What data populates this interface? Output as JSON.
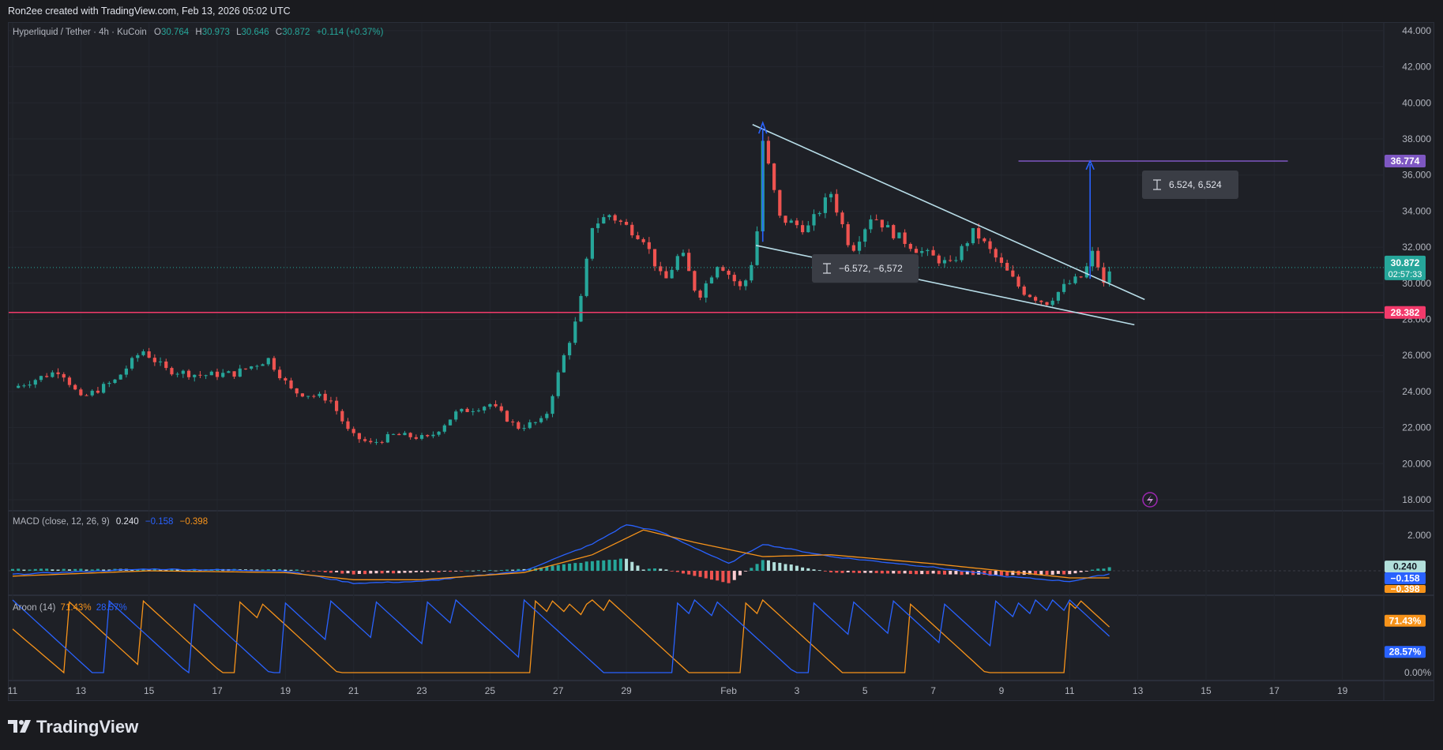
{
  "header": {
    "credit": "Ron2ee created with TradingView.com, Feb 13, 2026 05:02 UTC"
  },
  "legend": {
    "symbol": "Hyperliquid / Tether · 4h · KuCoin",
    "o_label": "O",
    "o_value": "30.764",
    "h_label": "H",
    "h_value": "30.973",
    "l_label": "L",
    "l_value": "30.646",
    "c_label": "C",
    "c_value": "30.872",
    "change": "+0.114 (+0.37%)"
  },
  "macd": {
    "label": "MACD (close, 12, 26, 9)",
    "hist": "0.240",
    "macd": "−0.158",
    "signal": "−0.398"
  },
  "aroon": {
    "label": "Aroon (14)",
    "up": "71.43%",
    "down": "28.57%"
  },
  "price_tags": {
    "target": "36.774",
    "last": "30.872",
    "countdown": "02:57:33",
    "support": "28.382"
  },
  "macd_tags": {
    "hist": "0.240",
    "macd": "−0.158",
    "signal": "−0.398"
  },
  "aroon_tags": {
    "up": "71.43%",
    "down": "28.57%"
  },
  "measure_labels": {
    "down": "−6.572, −6,572",
    "up": "6.524, 6,524"
  },
  "footer": {
    "brand": "TradingView"
  },
  "colors": {
    "up": "#26a69a",
    "down": "#ef5350",
    "support": "#f23a6b",
    "target": "#7e57c2",
    "macd": "#2962ff",
    "signal": "#f7931a",
    "aroon_up": "#f7931a",
    "aroon_down": "#2962ff"
  },
  "chart_data": [
    {
      "type": "candlestick",
      "title": "Hyperliquid / Tether · 4h · KuCoin",
      "price_axis_ticks": [
        "44.000",
        "42.000",
        "40.000",
        "38.000",
        "36.000",
        "34.000",
        "32.000",
        "30.000",
        "28.000",
        "26.000",
        "24.000",
        "22.000",
        "20.000",
        "18.000"
      ],
      "ylim": [
        17.0,
        44.5
      ],
      "time_axis_ticks": [
        "11",
        "13",
        "15",
        "17",
        "19",
        "21",
        "23",
        "25",
        "27",
        "29",
        "Feb",
        "3",
        "5",
        "7",
        "9",
        "11",
        "13",
        "15",
        "17",
        "19"
      ],
      "horizontal_lines": [
        {
          "price": 28.382
        },
        {
          "price": 36.774
        }
      ],
      "trendlines": [
        {
          "from": {
            "day": "Feb 3",
            "price": 38.8
          },
          "to": {
            "day": "Feb 14",
            "price": 29.1
          }
        },
        {
          "from": {
            "day": "Feb 3",
            "price": 32.1
          },
          "to": {
            "day": "Feb 14",
            "price": 27.7
          }
        }
      ],
      "measures": [
        {
          "from_price": 32.3,
          "to_price": 38.9,
          "label": "−6.572, −6,572"
        },
        {
          "from_price": 30.25,
          "to_price": 36.774,
          "label": "6.524, 6,524"
        }
      ],
      "anchors": [
        {
          "day": 11,
          "price": 24.2
        },
        {
          "day": 12.4,
          "price": 25.2
        },
        {
          "day": 13.0,
          "price": 23.6
        },
        {
          "day": 14.0,
          "price": 24.6
        },
        {
          "day": 14.8,
          "price": 26.3
        },
        {
          "day": 15.5,
          "price": 25.2
        },
        {
          "day": 16.5,
          "price": 24.9
        },
        {
          "day": 17.5,
          "price": 25.0
        },
        {
          "day": 18.5,
          "price": 25.8
        },
        {
          "day": 19.2,
          "price": 24.0
        },
        {
          "day": 20.3,
          "price": 23.6
        },
        {
          "day": 20.9,
          "price": 21.6
        },
        {
          "day": 21.5,
          "price": 21.1
        },
        {
          "day": 22.2,
          "price": 21.6
        },
        {
          "day": 23.2,
          "price": 21.4
        },
        {
          "day": 24.0,
          "price": 22.8
        },
        {
          "day": 25.0,
          "price": 23.3
        },
        {
          "day": 25.8,
          "price": 22.0
        },
        {
          "day": 26.6,
          "price": 22.4
        },
        {
          "day": 27.1,
          "price": 25.6
        },
        {
          "day": 27.6,
          "price": 28.3
        },
        {
          "day": 28.0,
          "price": 33.2
        },
        {
          "day": 28.5,
          "price": 33.8
        },
        {
          "day": 29.5,
          "price": 32.5
        },
        {
          "day": 30.1,
          "price": 30.0
        },
        {
          "day": 30.6,
          "price": 31.8
        },
        {
          "day": 31.1,
          "price": 29.2
        },
        {
          "day": 31.7,
          "price": 31.2
        },
        {
          "day": 32.4,
          "price": 29.6
        },
        {
          "day": 32.8,
          "price": 31.9
        },
        {
          "day": 33.0,
          "price": 37.9
        },
        {
          "day": 33.5,
          "price": 33.6
        },
        {
          "day": 34.3,
          "price": 33.0
        },
        {
          "day": 35.0,
          "price": 35.0
        },
        {
          "day": 35.6,
          "price": 31.8
        },
        {
          "day": 36.2,
          "price": 33.8
        },
        {
          "day": 36.8,
          "price": 32.8
        },
        {
          "day": 37.5,
          "price": 31.9
        },
        {
          "day": 38.5,
          "price": 31.0
        },
        {
          "day": 39.2,
          "price": 32.9
        },
        {
          "day": 40.0,
          "price": 31.0
        },
        {
          "day": 40.6,
          "price": 29.6
        },
        {
          "day": 41.3,
          "price": 28.9
        },
        {
          "day": 41.9,
          "price": 29.9
        },
        {
          "day": 42.4,
          "price": 30.4
        },
        {
          "day": 42.7,
          "price": 31.8
        },
        {
          "day": 43.0,
          "price": 29.9
        },
        {
          "day": 43.2,
          "price": 30.87
        }
      ]
    },
    {
      "type": "line+bar",
      "title": "MACD (close, 12, 26, 9)",
      "axis_ticks": [
        "2.000"
      ],
      "series": [
        {
          "name": "MACD",
          "values_at": [
            [
              11,
              -0.2
            ],
            [
              15,
              0.1
            ],
            [
              19,
              0.0
            ],
            [
              21,
              -0.7
            ],
            [
              23,
              -0.6
            ],
            [
              26,
              0.0
            ],
            [
              28,
              1.5
            ],
            [
              29,
              2.6
            ],
            [
              30,
              2.2
            ],
            [
              32,
              0.4
            ],
            [
              33,
              1.5
            ],
            [
              35,
              0.8
            ],
            [
              38,
              0.2
            ],
            [
              40,
              -0.3
            ],
            [
              42,
              -0.6
            ],
            [
              43.2,
              -0.158
            ]
          ]
        },
        {
          "name": "Signal",
          "values_at": [
            [
              11,
              -0.3
            ],
            [
              15,
              0.0
            ],
            [
              19,
              -0.1
            ],
            [
              21,
              -0.5
            ],
            [
              23,
              -0.5
            ],
            [
              26,
              -0.1
            ],
            [
              28,
              0.9
            ],
            [
              29.5,
              2.3
            ],
            [
              31,
              1.6
            ],
            [
              33,
              0.8
            ],
            [
              35,
              0.9
            ],
            [
              38,
              0.4
            ],
            [
              40,
              0.0
            ],
            [
              42,
              -0.4
            ],
            [
              43.2,
              -0.398
            ]
          ]
        }
      ],
      "last": {
        "hist": 0.24,
        "macd": -0.158,
        "signal": -0.398
      }
    },
    {
      "type": "line",
      "title": "Aroon (14)",
      "axis_ticks": [
        "0.00%"
      ],
      "series": [
        {
          "name": "Aroon Up",
          "last": 71.43
        },
        {
          "name": "Aroon Down",
          "last": 28.57
        }
      ]
    }
  ]
}
